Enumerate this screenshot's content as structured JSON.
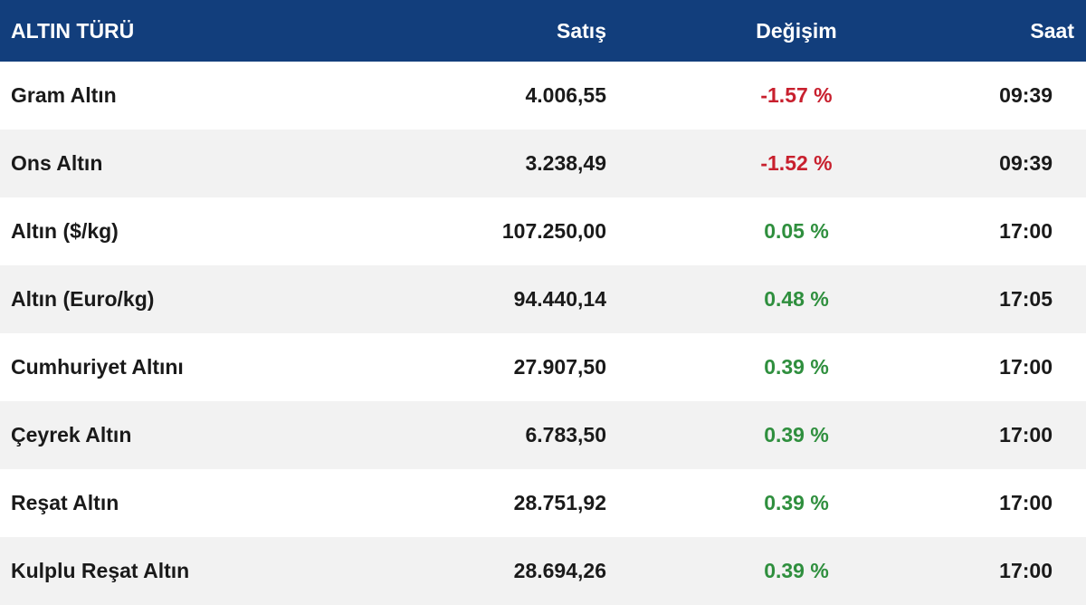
{
  "table": {
    "header": [
      "ALTIN TÜRÜ",
      "Satış",
      "Değişim",
      "Saat"
    ],
    "rows": [
      [
        "Gram Altın",
        "4.006,55",
        "-1.57 %",
        "09:39"
      ],
      [
        "Ons Altın",
        "3.238,49",
        "-1.52 %",
        "09:39"
      ],
      [
        "Altın ($/kg)",
        "107.250,00",
        "0.05 %",
        "17:00"
      ],
      [
        "Altın (Euro/kg)",
        "94.440,14",
        "0.48 %",
        "17:05"
      ],
      [
        "Cumhuriyet Altını",
        "27.907,50",
        "0.39 %",
        "17:00"
      ],
      [
        "Çeyrek Altın",
        "6.783,50",
        "0.39 %",
        "17:00"
      ],
      [
        "Reşat Altın",
        "28.751,92",
        "0.39 %",
        "17:00"
      ],
      [
        "Kulplu Reşat Altın",
        "28.694,26",
        "0.39 %",
        "17:00"
      ]
    ]
  }
}
